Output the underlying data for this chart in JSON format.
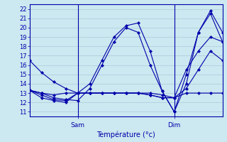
{
  "title": "Température (°c)",
  "bg_color": "#cce8f0",
  "line_color": "#0000aa",
  "grid_color": "#aaccdd",
  "ylim": [
    10.5,
    22.5
  ],
  "yticks": [
    11,
    12,
    13,
    14,
    15,
    16,
    17,
    18,
    19,
    20,
    21,
    22
  ],
  "xlim": [
    0,
    48
  ],
  "sam_x": 12,
  "dim_x": 36,
  "lines": [
    [
      0,
      16.5,
      3,
      15.2,
      6,
      14.2,
      9,
      13.5,
      12,
      13.0,
      15,
      14.0,
      18,
      16.5,
      21,
      19.0,
      24,
      20.2,
      27,
      20.5,
      30,
      17.5,
      33,
      13.2,
      36,
      11.0,
      39,
      14.0,
      42,
      19.5,
      45,
      21.5,
      48,
      18.5
    ],
    [
      0,
      13.3,
      3,
      13.0,
      6,
      12.5,
      9,
      12.3,
      12,
      12.2,
      15,
      13.5,
      18,
      16.0,
      21,
      18.5,
      24,
      20.0,
      27,
      19.5,
      30,
      16.0,
      33,
      13.2,
      36,
      11.0,
      39,
      15.0,
      42,
      19.5,
      45,
      21.8,
      48,
      19.5
    ],
    [
      0,
      13.3,
      3,
      13.0,
      6,
      12.8,
      9,
      13.0,
      12,
      13.0,
      15,
      13.0,
      18,
      13.0,
      21,
      13.0,
      24,
      13.0,
      27,
      13.0,
      30,
      13.0,
      33,
      12.8,
      36,
      12.5,
      39,
      15.5,
      42,
      17.5,
      45,
      19.0,
      48,
      18.5
    ],
    [
      0,
      13.3,
      3,
      12.8,
      6,
      12.3,
      9,
      12.2,
      12,
      13.0,
      15,
      13.0,
      18,
      13.0,
      21,
      13.0,
      24,
      13.0,
      27,
      13.0,
      30,
      12.8,
      33,
      12.5,
      36,
      12.5,
      39,
      13.5,
      42,
      15.5,
      45,
      17.5,
      48,
      16.5
    ],
    [
      0,
      13.3,
      3,
      12.5,
      6,
      12.2,
      9,
      12.0,
      12,
      13.0,
      15,
      13.0,
      18,
      13.0,
      21,
      13.0,
      24,
      13.0,
      27,
      13.0,
      30,
      12.8,
      33,
      12.5,
      36,
      12.5,
      39,
      13.0,
      42,
      13.0,
      45,
      13.0,
      48,
      13.0
    ]
  ]
}
